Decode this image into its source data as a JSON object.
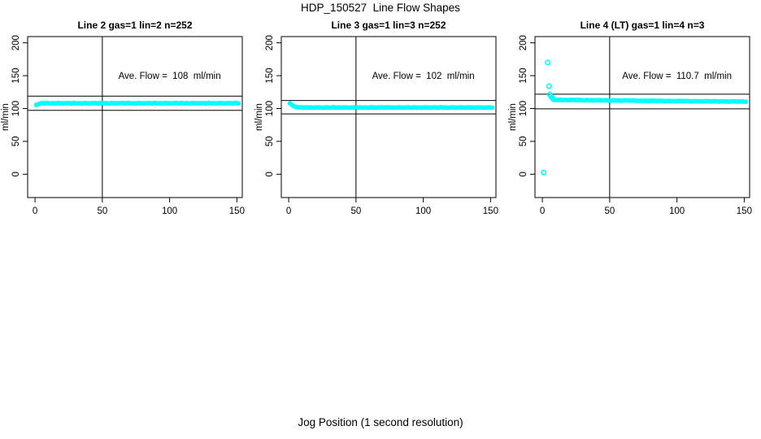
{
  "figure": {
    "title": "HDP_150527  Line Flow Shapes",
    "xlabel": "Jog Position (1 second resolution)",
    "background_color": "#ffffff",
    "axis_color": "#000000",
    "point_color": "#00ffff"
  },
  "chart_data": [
    {
      "type": "scatter",
      "title": "Line 2 gas=1 lin=2 n=252",
      "ylabel": "ml/min",
      "n": 252,
      "ave_flow": 108,
      "annotation": {
        "text": "Ave. Flow =  108  ml/min",
        "x": 100,
        "y": 150
      },
      "xticks": [
        0,
        50,
        100,
        150
      ],
      "yticks": [
        0,
        50,
        100,
        150,
        200
      ],
      "axis_x_range": [
        -5.5,
        154
      ],
      "axis_y_range": [
        -35.5,
        209.5
      ],
      "grid": false,
      "vline_x": 50,
      "hlines": [
        97.2,
        118.8
      ],
      "point_color": "#00ffff",
      "points": [
        [
          1,
          105.5
        ],
        [
          3,
          107
        ],
        [
          5,
          108.3
        ],
        [
          7,
          107.6
        ],
        [
          9,
          108.5
        ],
        [
          11,
          107.8
        ],
        [
          13,
          108
        ],
        [
          15,
          107.5
        ],
        [
          17,
          108.4
        ],
        [
          19,
          108.1
        ],
        [
          21,
          107.7
        ],
        [
          23,
          108.2
        ],
        [
          25,
          108.3
        ],
        [
          27,
          107.6
        ],
        [
          29,
          108.5
        ],
        [
          31,
          107.8
        ],
        [
          33,
          108
        ],
        [
          35,
          107.5
        ],
        [
          37,
          108.4
        ],
        [
          39,
          108.1
        ],
        [
          41,
          107.7
        ],
        [
          43,
          108.2
        ],
        [
          45,
          108.3
        ],
        [
          47,
          107.6
        ],
        [
          49,
          108.5
        ],
        [
          51,
          107.8
        ],
        [
          53,
          108
        ],
        [
          55,
          107.5
        ],
        [
          57,
          108.4
        ],
        [
          59,
          108.1
        ],
        [
          61,
          107.7
        ],
        [
          63,
          108.2
        ],
        [
          65,
          108.3
        ],
        [
          67,
          107.6
        ],
        [
          69,
          108.5
        ],
        [
          71,
          107.8
        ],
        [
          73,
          108
        ],
        [
          75,
          107.5
        ],
        [
          77,
          108.4
        ],
        [
          79,
          108.1
        ],
        [
          81,
          107.7
        ],
        [
          83,
          108.2
        ],
        [
          85,
          108.3
        ],
        [
          87,
          107.6
        ],
        [
          89,
          108.5
        ],
        [
          91,
          107.8
        ],
        [
          93,
          108
        ],
        [
          95,
          107.5
        ],
        [
          97,
          108.4
        ],
        [
          99,
          108.1
        ],
        [
          101,
          107.7
        ],
        [
          103,
          108.2
        ],
        [
          105,
          108.3
        ],
        [
          107,
          107.6
        ],
        [
          109,
          108.5
        ],
        [
          111,
          107.8
        ],
        [
          113,
          108
        ],
        [
          115,
          107.5
        ],
        [
          117,
          108.4
        ],
        [
          119,
          108.1
        ],
        [
          121,
          107.7
        ],
        [
          123,
          108.2
        ],
        [
          125,
          108.3
        ],
        [
          127,
          107.6
        ],
        [
          129,
          108.5
        ],
        [
          131,
          107.8
        ],
        [
          133,
          108
        ],
        [
          135,
          107.5
        ],
        [
          137,
          108.4
        ],
        [
          139,
          108.1
        ],
        [
          141,
          107.7
        ],
        [
          143,
          108.2
        ],
        [
          145,
          108.3
        ],
        [
          147,
          107.6
        ],
        [
          149,
          108.5
        ],
        [
          151,
          107.8
        ]
      ],
      "extra_points": []
    },
    {
      "type": "scatter",
      "title": "Line 3 gas=1 lin=3 n=252",
      "ylabel": "ml/min",
      "n": 252,
      "ave_flow": 102,
      "annotation": {
        "text": "Ave. Flow =  102  ml/min",
        "x": 100,
        "y": 150
      },
      "xticks": [
        0,
        50,
        100,
        150
      ],
      "yticks": [
        0,
        50,
        100,
        150,
        200
      ],
      "axis_x_range": [
        -5.5,
        154
      ],
      "axis_y_range": [
        -35.5,
        209.5
      ],
      "grid": false,
      "vline_x": 50,
      "hlines": [
        91.8,
        112.2
      ],
      "point_color": "#00ffff",
      "points": [
        [
          1,
          107.8
        ],
        [
          3,
          104.5
        ],
        [
          5,
          102.6
        ],
        [
          7,
          101.9
        ],
        [
          9,
          101.7
        ],
        [
          11,
          101.3
        ],
        [
          13,
          101.8
        ],
        [
          15,
          101.4
        ],
        [
          17,
          101.5
        ],
        [
          19,
          101.2
        ],
        [
          21,
          101.7
        ],
        [
          23,
          101.6
        ],
        [
          25,
          101.3
        ],
        [
          27,
          101.6
        ],
        [
          29,
          101.7
        ],
        [
          31,
          101.3
        ],
        [
          33,
          101.8
        ],
        [
          35,
          101.4
        ],
        [
          37,
          101.5
        ],
        [
          39,
          101.2
        ],
        [
          41,
          101.7
        ],
        [
          43,
          101.6
        ],
        [
          45,
          101.3
        ],
        [
          47,
          101.6
        ],
        [
          49,
          101.7
        ],
        [
          51,
          101.3
        ],
        [
          53,
          101.8
        ],
        [
          55,
          101.4
        ],
        [
          57,
          101.5
        ],
        [
          59,
          101.2
        ],
        [
          61,
          101.7
        ],
        [
          63,
          101.6
        ],
        [
          65,
          101.3
        ],
        [
          67,
          101.6
        ],
        [
          69,
          101.7
        ],
        [
          71,
          101.3
        ],
        [
          73,
          101.8
        ],
        [
          75,
          101.4
        ],
        [
          77,
          101.5
        ],
        [
          79,
          101.2
        ],
        [
          81,
          101.7
        ],
        [
          83,
          101.6
        ],
        [
          85,
          101.3
        ],
        [
          87,
          101.6
        ],
        [
          89,
          101.7
        ],
        [
          91,
          101.3
        ],
        [
          93,
          101.8
        ],
        [
          95,
          101.4
        ],
        [
          97,
          101.5
        ],
        [
          99,
          101.2
        ],
        [
          101,
          101.7
        ],
        [
          103,
          101.6
        ],
        [
          105,
          101.3
        ],
        [
          107,
          101.6
        ],
        [
          109,
          101.7
        ],
        [
          111,
          101.3
        ],
        [
          113,
          101.8
        ],
        [
          115,
          101.4
        ],
        [
          117,
          101.5
        ],
        [
          119,
          101.2
        ],
        [
          121,
          101.7
        ],
        [
          123,
          101.6
        ],
        [
          125,
          101.3
        ],
        [
          127,
          101.6
        ],
        [
          129,
          101.7
        ],
        [
          131,
          101.3
        ],
        [
          133,
          101.8
        ],
        [
          135,
          101.4
        ],
        [
          137,
          101.5
        ],
        [
          139,
          101.2
        ],
        [
          141,
          101.7
        ],
        [
          143,
          101.6
        ],
        [
          145,
          101.3
        ],
        [
          147,
          101.6
        ],
        [
          149,
          101.7
        ],
        [
          151,
          101.3
        ]
      ],
      "extra_points": []
    },
    {
      "type": "scatter",
      "title": "Line 4 (LT) gas=1 lin=4 n=3",
      "ylabel": "ml/min",
      "n": 3,
      "ave_flow": 110.7,
      "annotation": {
        "text": "Ave. Flow =  110.7  ml/min",
        "x": 100,
        "y": 150
      },
      "xticks": [
        0,
        50,
        100,
        150
      ],
      "yticks": [
        0,
        50,
        100,
        150,
        200
      ],
      "axis_x_range": [
        -5.5,
        154
      ],
      "axis_y_range": [
        -35.5,
        209.5
      ],
      "grid": false,
      "vline_x": 50,
      "hlines": [
        99.6,
        121.8
      ],
      "point_color": "#00ffff",
      "points": [
        [
          9,
          113.2
        ],
        [
          11,
          112.8
        ],
        [
          13,
          113.3
        ],
        [
          15,
          112.9
        ],
        [
          17,
          113
        ],
        [
          19,
          112.7
        ],
        [
          21,
          113.2
        ],
        [
          23,
          113.1
        ],
        [
          25,
          112.8
        ],
        [
          27,
          113.1
        ],
        [
          29,
          112.8
        ],
        [
          31,
          112.4
        ],
        [
          33,
          112.9
        ],
        [
          35,
          112.5
        ],
        [
          37,
          112.6
        ],
        [
          39,
          112.3
        ],
        [
          41,
          112.8
        ],
        [
          43,
          112.7
        ],
        [
          45,
          112.4
        ],
        [
          47,
          112.7
        ],
        [
          49,
          112.4
        ],
        [
          51,
          112
        ],
        [
          53,
          112.5
        ],
        [
          55,
          112.1
        ],
        [
          57,
          112.2
        ],
        [
          59,
          111.9
        ],
        [
          61,
          112.4
        ],
        [
          63,
          112.3
        ],
        [
          65,
          112
        ],
        [
          67,
          112.3
        ],
        [
          69,
          112
        ],
        [
          71,
          111.6
        ],
        [
          73,
          112.1
        ],
        [
          75,
          111.7
        ],
        [
          77,
          111.8
        ],
        [
          79,
          111.5
        ],
        [
          81,
          112
        ],
        [
          83,
          111.9
        ],
        [
          85,
          111.6
        ],
        [
          87,
          111.9
        ],
        [
          89,
          111.6
        ],
        [
          91,
          111.2
        ],
        [
          93,
          111.7
        ],
        [
          95,
          111.3
        ],
        [
          97,
          111.4
        ],
        [
          99,
          111.1
        ],
        [
          101,
          111.6
        ],
        [
          103,
          111.5
        ],
        [
          105,
          111.2
        ],
        [
          107,
          111.5
        ],
        [
          109,
          111.2
        ],
        [
          111,
          110.8
        ],
        [
          113,
          111.3
        ],
        [
          115,
          110.9
        ],
        [
          117,
          111
        ],
        [
          119,
          110.7
        ],
        [
          121,
          111.2
        ],
        [
          123,
          111.1
        ],
        [
          125,
          110.8
        ],
        [
          127,
          111.1
        ],
        [
          129,
          110.9
        ],
        [
          131,
          110.5
        ],
        [
          133,
          111
        ],
        [
          135,
          110.6
        ],
        [
          137,
          110.7
        ],
        [
          139,
          110.4
        ],
        [
          141,
          110.9
        ],
        [
          143,
          110.8
        ],
        [
          145,
          110.5
        ],
        [
          147,
          110.8
        ],
        [
          149,
          110.6
        ],
        [
          151,
          110.4
        ]
      ],
      "extra_points": [
        [
          1,
          2.5
        ],
        [
          4,
          170
        ],
        [
          5,
          134
        ],
        [
          5.5,
          121.5
        ],
        [
          6.5,
          118.3
        ],
        [
          7.5,
          116
        ],
        [
          8,
          114.5
        ]
      ]
    }
  ]
}
